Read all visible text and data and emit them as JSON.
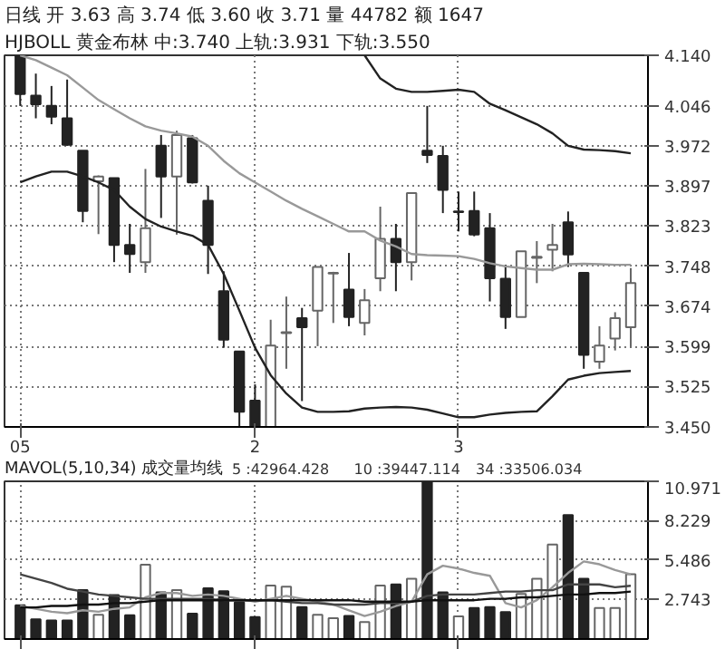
{
  "chart_data": [
    {
      "type": "candlestick",
      "title": "日线  开 3.63  高 3.74  低 3.60  收 3.71  量 44782  额 1647",
      "subtitle": "HJBOLL  黄金布林  中:3.740  上轨:3.931  下轨:3.550",
      "categories": [
        "05",
        null,
        null,
        null,
        null,
        null,
        null,
        null,
        null,
        null,
        null,
        null,
        null,
        null,
        null,
        "2",
        null,
        null,
        null,
        null,
        null,
        null,
        null,
        null,
        null,
        null,
        null,
        null,
        "3",
        null,
        null,
        null,
        null,
        null,
        null,
        null,
        null,
        null,
        null,
        null
      ],
      "ohlc": [
        [
          4.14,
          4.14,
          4.046,
          4.068
        ],
        [
          4.065,
          4.106,
          4.023,
          4.049
        ],
        [
          4.046,
          4.083,
          4.012,
          4.026
        ],
        [
          4.023,
          4.095,
          3.972,
          3.974
        ],
        [
          3.963,
          3.963,
          3.83,
          3.851
        ],
        [
          3.906,
          3.917,
          3.808,
          3.915
        ],
        [
          3.912,
          3.912,
          3.756,
          3.788
        ],
        [
          3.788,
          3.827,
          3.736,
          3.771
        ],
        [
          3.756,
          3.929,
          3.736,
          3.819
        ],
        [
          3.972,
          3.992,
          3.838,
          3.915
        ],
        [
          3.915,
          4.0,
          3.807,
          3.992
        ],
        [
          3.986,
          3.992,
          3.902,
          3.904
        ],
        [
          3.87,
          3.898,
          3.734,
          3.788
        ],
        [
          3.702,
          3.739,
          3.597,
          3.612
        ],
        [
          3.59,
          3.59,
          3.45,
          3.478
        ],
        [
          3.499,
          3.529,
          3.45,
          3.45
        ],
        [
          3.45,
          3.649,
          3.45,
          3.601
        ],
        [
          3.624,
          3.692,
          3.558,
          3.626
        ],
        [
          3.652,
          3.671,
          3.498,
          3.635
        ],
        [
          3.666,
          3.747,
          3.6,
          3.747
        ],
        [
          3.735,
          3.738,
          3.643,
          3.736
        ],
        [
          3.705,
          3.773,
          3.637,
          3.654
        ],
        [
          3.643,
          3.706,
          3.62,
          3.685
        ],
        [
          3.726,
          3.859,
          3.702,
          3.799
        ],
        [
          3.799,
          3.827,
          3.702,
          3.756
        ],
        [
          3.756,
          3.884,
          3.722,
          3.884
        ],
        [
          3.963,
          4.046,
          3.94,
          3.955
        ],
        [
          3.953,
          3.972,
          3.847,
          3.89
        ],
        [
          3.85,
          3.887,
          3.813,
          3.849
        ],
        [
          3.851,
          3.887,
          3.804,
          3.807
        ],
        [
          3.819,
          3.847,
          3.683,
          3.726
        ],
        [
          3.725,
          3.751,
          3.632,
          3.654
        ],
        [
          3.654,
          3.776,
          3.654,
          3.776
        ],
        [
          3.764,
          3.795,
          3.717,
          3.766
        ],
        [
          3.779,
          3.827,
          3.739,
          3.788
        ],
        [
          3.83,
          3.85,
          3.747,
          3.77
        ],
        [
          3.736,
          3.736,
          3.558,
          3.584
        ],
        [
          3.571,
          3.637,
          3.558,
          3.601
        ],
        [
          3.614,
          3.663,
          3.592,
          3.652
        ],
        [
          3.635,
          3.745,
          3.597,
          3.717
        ]
      ],
      "colors": [
        "#222222",
        "#222222",
        "#222222",
        "#222222",
        "#222222",
        "#ffffff",
        "#222222",
        "#222222",
        "#ffffff",
        "#222222",
        "#ffffff",
        "#222222",
        "#222222",
        "#222222",
        "#222222",
        "#222222",
        "#ffffff",
        "#ffffff",
        "#222222",
        "#ffffff",
        "#ffffff",
        "#222222",
        "#ffffff",
        "#ffffff",
        "#222222",
        "#ffffff",
        "#222222",
        "#222222",
        "#222222",
        "#222222",
        "#222222",
        "#222222",
        "#ffffff",
        "#ffffff",
        "#ffffff",
        "#222222",
        "#222222",
        "#ffffff",
        "#ffffff",
        "#ffffff"
      ],
      "series": [
        {
          "type": "line",
          "color": "#222222",
          "values": [
            null,
            null,
            null,
            null,
            null,
            null,
            null,
            null,
            null,
            null,
            null,
            null,
            null,
            null,
            null,
            null,
            null,
            null,
            null,
            null,
            null,
            null,
            4.14,
            4.097,
            4.078,
            4.072,
            4.072,
            4.074,
            4.076,
            4.072,
            4.05,
            4.038,
            4.025,
            4.012,
            3.995,
            3.972,
            3.965,
            3.964,
            3.962,
            3.958
          ]
        },
        {
          "type": "line",
          "color": "#999999",
          "values": [
            4.14,
            4.131,
            4.117,
            4.103,
            4.08,
            4.057,
            4.04,
            4.023,
            4.008,
            4.0,
            3.995,
            3.989,
            3.972,
            3.944,
            3.921,
            3.904,
            3.887,
            3.87,
            3.855,
            3.841,
            3.827,
            3.813,
            3.813,
            3.796,
            3.785,
            3.771,
            3.769,
            3.768,
            3.767,
            3.762,
            3.754,
            3.748,
            3.745,
            3.742,
            3.742,
            3.752,
            3.753,
            3.752,
            3.751,
            3.751
          ]
        },
        {
          "type": "line",
          "color": "#222222",
          "values": [
            3.904,
            3.915,
            3.924,
            3.924,
            3.915,
            3.904,
            3.89,
            3.859,
            3.836,
            3.822,
            3.813,
            3.805,
            3.788,
            3.734,
            3.666,
            3.597,
            3.546,
            3.512,
            3.486,
            3.478,
            3.478,
            3.479,
            3.484,
            3.486,
            3.487,
            3.486,
            3.482,
            3.475,
            3.468,
            3.468,
            3.473,
            3.476,
            3.478,
            3.479,
            3.507,
            3.538,
            3.545,
            3.55,
            3.552,
            3.554
          ]
        }
      ],
      "ylim": [
        3.45,
        4.14
      ],
      "yticks": [
        {
          "value": 4.14,
          "label": "4.140"
        },
        4.046,
        3.972,
        3.897,
        3.823,
        3.748,
        3.674,
        3.599,
        3.525,
        {
          "value": 3.45,
          "label": "3.450"
        }
      ],
      "grid": true
    },
    {
      "type": "bar",
      "title": "MAVOL(5,10,34) 成交量均线",
      "annotations": [
        "5 :42964.428",
        "10 :39447.114",
        "34 :33506.034"
      ],
      "categories": [
        "05",
        null,
        null,
        null,
        null,
        null,
        null,
        null,
        null,
        null,
        null,
        null,
        null,
        null,
        null,
        "2",
        null,
        null,
        null,
        null,
        null,
        null,
        null,
        null,
        null,
        null,
        null,
        null,
        "3",
        null,
        null,
        null,
        null,
        null,
        null,
        null,
        null,
        null,
        null,
        null
      ],
      "series": [
        {
          "type": "bar",
          "values": [
            2.35,
            1.37,
            1.29,
            1.29,
            3.41,
            1.69,
            3.06,
            1.65,
            5.17,
            3.25,
            3.41,
            1.76,
            3.53,
            3.33,
            2.55,
            1.53,
            3.72,
            3.64,
            2.23,
            1.69,
            1.45,
            1.61,
            1.18,
            3.72,
            3.8,
            4.19,
            10.97,
            3.25,
            1.57,
            2.16,
            2.23,
            1.88,
            3.14,
            4.19,
            6.58,
            8.62,
            4.19,
            2.16,
            2.16,
            4.51
          ],
          "colors": [
            "#222222",
            "#222222",
            "#222222",
            "#222222",
            "#222222",
            "#ffffff",
            "#222222",
            "#222222",
            "#ffffff",
            "#222222",
            "#ffffff",
            "#222222",
            "#222222",
            "#222222",
            "#222222",
            "#222222",
            "#ffffff",
            "#ffffff",
            "#222222",
            "#ffffff",
            "#ffffff",
            "#222222",
            "#ffffff",
            "#ffffff",
            "#222222",
            "#ffffff",
            "#222222",
            "#222222",
            "#ffffff",
            "#222222",
            "#222222",
            "#222222",
            "#ffffff",
            "#ffffff",
            "#ffffff",
            "#222222",
            "#222222",
            "#ffffff",
            "#ffffff",
            "#ffffff"
          ]
        },
        {
          "type": "line",
          "color": "#999999",
          "values": [
            2.3,
            2.1,
            1.9,
            1.8,
            2.0,
            1.9,
            2.1,
            2.2,
            2.9,
            3.2,
            3.2,
            3.0,
            3.1,
            3.0,
            2.8,
            2.6,
            2.8,
            3.0,
            2.8,
            2.6,
            2.4,
            2.0,
            1.6,
            1.9,
            2.3,
            2.6,
            4.5,
            5.1,
            4.9,
            4.6,
            4.4,
            2.5,
            2.2,
            2.7,
            3.6,
            4.6,
            5.4,
            5.2,
            4.8,
            4.5
          ]
        },
        {
          "type": "line",
          "color": "#444444",
          "values": [
            4.5,
            4.2,
            3.9,
            3.5,
            3.3,
            3.1,
            3.0,
            2.9,
            2.8,
            2.8,
            2.8,
            2.8,
            2.8,
            2.7,
            2.7,
            2.7,
            2.7,
            2.6,
            2.5,
            2.5,
            2.4,
            2.4,
            2.4,
            2.5,
            2.5,
            2.6,
            3.0,
            3.1,
            3.1,
            3.1,
            3.2,
            3.3,
            3.3,
            3.4,
            3.4,
            3.8,
            3.8,
            3.8,
            3.6,
            3.7
          ]
        },
        {
          "type": "line",
          "color": "#111111",
          "values": [
            2.2,
            2.2,
            2.3,
            2.3,
            2.4,
            2.4,
            2.5,
            2.5,
            2.6,
            2.7,
            2.7,
            2.7,
            2.7,
            2.7,
            2.7,
            2.7,
            2.7,
            2.7,
            2.7,
            2.7,
            2.7,
            2.7,
            2.6,
            2.6,
            2.6,
            2.6,
            2.7,
            2.7,
            2.7,
            2.7,
            2.8,
            2.8,
            2.9,
            2.9,
            3.0,
            3.1,
            3.1,
            3.2,
            3.2,
            3.3
          ]
        }
      ],
      "ylim": [
        0,
        10.971
      ],
      "yticks": [
        2.743,
        5.486,
        8.229,
        10.971
      ],
      "tick_labels": "y",
      "grid": true
    }
  ]
}
